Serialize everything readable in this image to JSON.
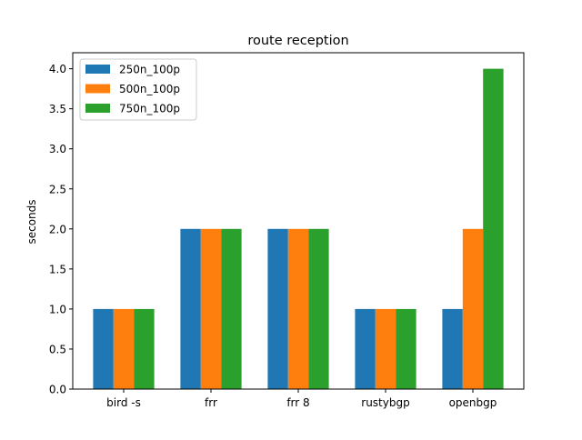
{
  "chart_data": {
    "type": "bar",
    "title": "route reception",
    "xlabel": "",
    "ylabel": "seconds",
    "categories": [
      "bird -s",
      "frr",
      "frr 8",
      "rustybgp",
      "openbgp"
    ],
    "series": [
      {
        "name": "250n_100p",
        "color": "#1f77b4",
        "values": [
          1,
          2,
          2,
          1,
          1
        ]
      },
      {
        "name": "500n_100p",
        "color": "#ff7f0e",
        "values": [
          1,
          2,
          2,
          1,
          2
        ]
      },
      {
        "name": "750n_100p",
        "color": "#2ca02c",
        "values": [
          1,
          2,
          2,
          1,
          4
        ]
      }
    ],
    "ylim": [
      0,
      4.2
    ],
    "yticks": [
      "0.0",
      "0.5",
      "1.0",
      "1.5",
      "2.0",
      "2.5",
      "3.0",
      "3.5",
      "4.0"
    ],
    "grid": false,
    "legend_position": "top-left"
  }
}
